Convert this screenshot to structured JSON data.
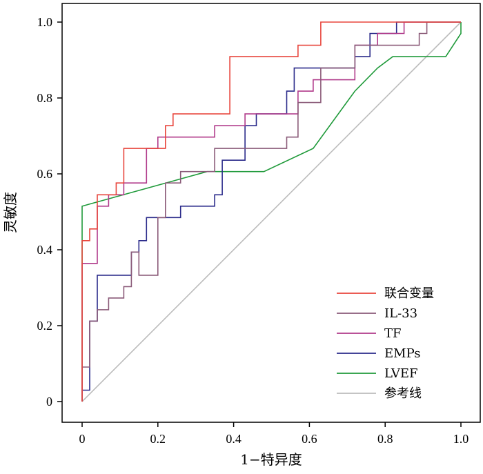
{
  "chart_data": {
    "type": "line",
    "xlabel": "1−特异度",
    "ylabel": "灵敏度",
    "xlim": [
      0,
      1
    ],
    "ylim": [
      0,
      1
    ],
    "x_ticks": [
      "0",
      "0.2",
      "0.4",
      "0.6",
      "0.8",
      "1.0"
    ],
    "y_ticks": [
      "0",
      "0.2",
      "0.4",
      "0.6",
      "0.8",
      "1.0"
    ],
    "grid": false,
    "legend_position": "bottom-right",
    "series": [
      {
        "name": "联合变量",
        "color": "#e8453c",
        "x": [
          0,
          0,
          0.02,
          0.02,
          0.04,
          0.04,
          0.09,
          0.09,
          0.11,
          0.11,
          0.22,
          0.22,
          0.24,
          0.24,
          0.39,
          0.39,
          0.57,
          0.57,
          0.63,
          0.63,
          1.0
        ],
        "y": [
          0,
          0.424,
          0.424,
          0.455,
          0.455,
          0.545,
          0.545,
          0.576,
          0.576,
          0.667,
          0.667,
          0.727,
          0.727,
          0.758,
          0.758,
          0.909,
          0.909,
          0.939,
          0.939,
          1.0,
          1.0
        ]
      },
      {
        "name": "IL-33",
        "color": "#8a5a78",
        "x": [
          0,
          0,
          0.02,
          0.02,
          0.04,
          0.04,
          0.07,
          0.07,
          0.11,
          0.11,
          0.13,
          0.13,
          0.15,
          0.15,
          0.2,
          0.2,
          0.22,
          0.22,
          0.26,
          0.26,
          0.35,
          0.35,
          0.54,
          0.54,
          0.57,
          0.57,
          0.63,
          0.63,
          0.72,
          0.72,
          0.89,
          0.89,
          0.91,
          0.91,
          1.0
        ],
        "y": [
          0,
          0.091,
          0.091,
          0.212,
          0.212,
          0.242,
          0.242,
          0.273,
          0.273,
          0.303,
          0.303,
          0.394,
          0.394,
          0.333,
          0.333,
          0.485,
          0.485,
          0.576,
          0.576,
          0.606,
          0.606,
          0.667,
          0.667,
          0.697,
          0.697,
          0.788,
          0.788,
          0.879,
          0.879,
          0.939,
          0.939,
          0.97,
          0.97,
          1.0,
          1.0
        ]
      },
      {
        "name": "TF",
        "color": "#b03a8a",
        "x": [
          0,
          0,
          0.04,
          0.04,
          0.07,
          0.07,
          0.11,
          0.11,
          0.17,
          0.17,
          0.2,
          0.2,
          0.35,
          0.35,
          0.43,
          0.43,
          0.57,
          0.57,
          0.61,
          0.61,
          0.72,
          0.72,
          0.78,
          0.78,
          0.85,
          0.85,
          1.0
        ],
        "y": [
          0,
          0.364,
          0.364,
          0.515,
          0.515,
          0.545,
          0.545,
          0.576,
          0.576,
          0.667,
          0.667,
          0.697,
          0.697,
          0.727,
          0.727,
          0.758,
          0.758,
          0.818,
          0.818,
          0.848,
          0.848,
          0.939,
          0.939,
          0.97,
          0.97,
          1.0,
          1.0
        ]
      },
      {
        "name": "EMPs",
        "color": "#2a2a8a",
        "x": [
          0,
          0,
          0.02,
          0.02,
          0.04,
          0.04,
          0.13,
          0.13,
          0.15,
          0.15,
          0.17,
          0.17,
          0.26,
          0.26,
          0.35,
          0.35,
          0.37,
          0.37,
          0.43,
          0.43,
          0.46,
          0.46,
          0.54,
          0.54,
          0.56,
          0.56,
          0.72,
          0.72,
          0.76,
          0.76,
          0.83,
          0.83,
          1.0
        ],
        "y": [
          0,
          0.03,
          0.03,
          0.212,
          0.212,
          0.333,
          0.333,
          0.394,
          0.394,
          0.424,
          0.424,
          0.485,
          0.485,
          0.515,
          0.515,
          0.545,
          0.545,
          0.636,
          0.636,
          0.727,
          0.727,
          0.758,
          0.758,
          0.818,
          0.818,
          0.879,
          0.879,
          0.909,
          0.909,
          0.97,
          0.97,
          1.0,
          1.0
        ]
      },
      {
        "name": "LVEF",
        "color": "#1f9a3a",
        "x": [
          0,
          0,
          0.33,
          0.48,
          0.61,
          0.72,
          0.78,
          0.82,
          0.96,
          1.0,
          1.0
        ],
        "y": [
          0,
          0.515,
          0.606,
          0.606,
          0.667,
          0.818,
          0.879,
          0.909,
          0.909,
          0.97,
          1.0
        ]
      },
      {
        "name": "参考线",
        "color": "#bbbbbb",
        "x": [
          0,
          1
        ],
        "y": [
          0,
          1
        ]
      }
    ]
  }
}
